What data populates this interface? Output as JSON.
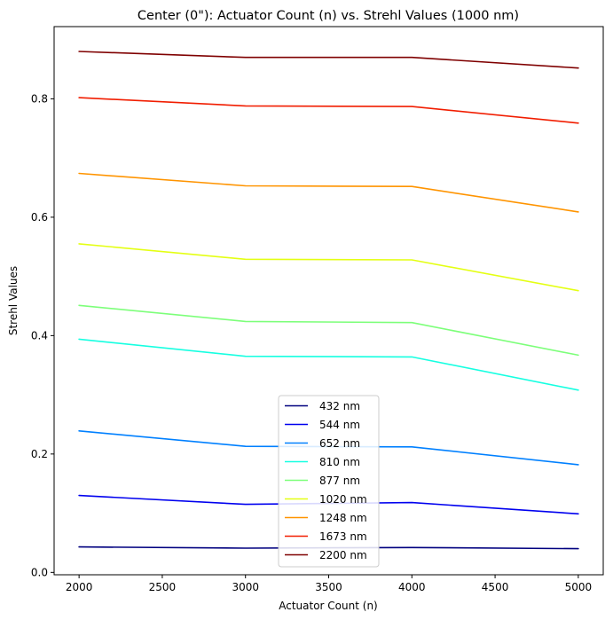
{
  "chart_data": {
    "type": "line",
    "title": "Center (0\"): Actuator Count (n) vs. Strehl Values (1000 nm)",
    "xlabel": "Actuator Count (n)",
    "ylabel": "Strehl Values",
    "x": [
      2000,
      3000,
      4000,
      5000
    ],
    "xlim": [
      1850,
      5150
    ],
    "ylim": [
      -0.004,
      0.922
    ],
    "xticks": [
      2000,
      2500,
      3000,
      3500,
      4000,
      4500,
      5000
    ],
    "yticks": [
      0.0,
      0.2,
      0.4,
      0.6,
      0.8
    ],
    "xtick_labels": [
      "2000",
      "2500",
      "3000",
      "3500",
      "4000",
      "4500",
      "5000"
    ],
    "ytick_labels": [
      "0.0",
      "0.2",
      "0.4",
      "0.6",
      "0.8"
    ],
    "grid": false,
    "legend_position": "lower center",
    "series": [
      {
        "name": "432 nm",
        "color": "#00007f",
        "values": [
          0.043,
          0.041,
          0.042,
          0.04
        ]
      },
      {
        "name": "544 nm",
        "color": "#0000ef",
        "values": [
          0.13,
          0.115,
          0.118,
          0.099
        ]
      },
      {
        "name": "652 nm",
        "color": "#0080ff",
        "values": [
          0.239,
          0.213,
          0.212,
          0.182
        ]
      },
      {
        "name": "810 nm",
        "color": "#16ffe1",
        "values": [
          0.394,
          0.365,
          0.364,
          0.308
        ]
      },
      {
        "name": "877 nm",
        "color": "#7dff7a",
        "values": [
          0.451,
          0.424,
          0.422,
          0.367
        ]
      },
      {
        "name": "1020 nm",
        "color": "#e4ff13",
        "values": [
          0.555,
          0.529,
          0.528,
          0.476
        ]
      },
      {
        "name": "1248 nm",
        "color": "#ff9400",
        "values": [
          0.674,
          0.653,
          0.652,
          0.609
        ]
      },
      {
        "name": "1673 nm",
        "color": "#f11d00",
        "values": [
          0.802,
          0.788,
          0.787,
          0.759
        ]
      },
      {
        "name": "2200 nm",
        "color": "#7f0000",
        "values": [
          0.88,
          0.87,
          0.87,
          0.852
        ]
      }
    ]
  }
}
